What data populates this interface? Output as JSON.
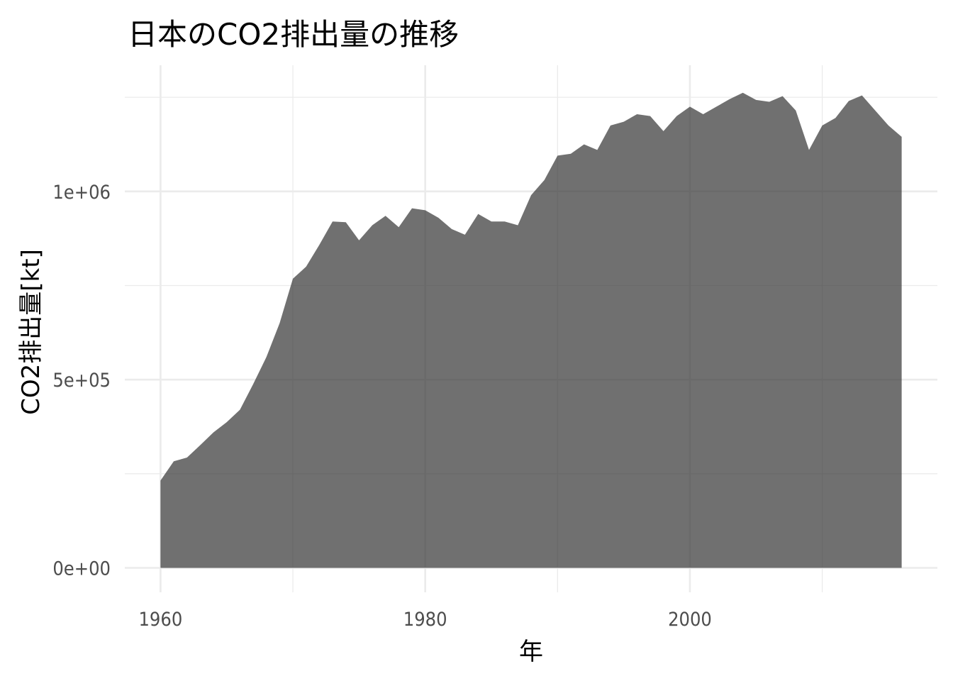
{
  "chart_data": {
    "type": "area",
    "title": "日本のCO2排出量の推移",
    "xlabel": "年",
    "ylabel": "CO2排出量[kt]",
    "xlim": [
      1957.3,
      2018.7
    ],
    "ylim": [
      -65000,
      1335000
    ],
    "x_ticks": [
      1960,
      1980,
      2000
    ],
    "x_tick_labels": [
      "1960",
      "1980",
      "2000"
    ],
    "x_minor_ticks": [
      1970,
      1990,
      2010
    ],
    "y_ticks": [
      0,
      500000,
      1000000
    ],
    "y_tick_labels": [
      "0e+00",
      "5e+05",
      "1e+06"
    ],
    "y_minor_ticks": [
      250000,
      750000,
      1250000
    ],
    "fill_color": "#333333",
    "fill_opacity": 0.7,
    "grid": true,
    "x": [
      1960,
      1961,
      1962,
      1963,
      1964,
      1965,
      1966,
      1967,
      1968,
      1969,
      1970,
      1971,
      1972,
      1973,
      1974,
      1975,
      1976,
      1977,
      1978,
      1979,
      1980,
      1981,
      1982,
      1983,
      1984,
      1985,
      1986,
      1987,
      1988,
      1989,
      1990,
      1991,
      1992,
      1993,
      1994,
      1995,
      1996,
      1997,
      1998,
      1999,
      2000,
      2001,
      2002,
      2003,
      2004,
      2005,
      2006,
      2007,
      2008,
      2009,
      2010,
      2011,
      2012,
      2013,
      2014,
      2015,
      2016
    ],
    "values": [
      232000,
      283000,
      293000,
      326000,
      360000,
      387000,
      420000,
      488000,
      560000,
      650000,
      768000,
      800000,
      858000,
      920000,
      918000,
      870000,
      910000,
      935000,
      905000,
      955000,
      950000,
      930000,
      900000,
      885000,
      940000,
      920000,
      920000,
      910000,
      990000,
      1030000,
      1095000,
      1100000,
      1125000,
      1110000,
      1175000,
      1185000,
      1205000,
      1200000,
      1160000,
      1200000,
      1225000,
      1205000,
      1225000,
      1245000,
      1262000,
      1243000,
      1238000,
      1253000,
      1215000,
      1110000,
      1175000,
      1195000,
      1240000,
      1255000,
      1215000,
      1175000,
      1145000
    ]
  }
}
